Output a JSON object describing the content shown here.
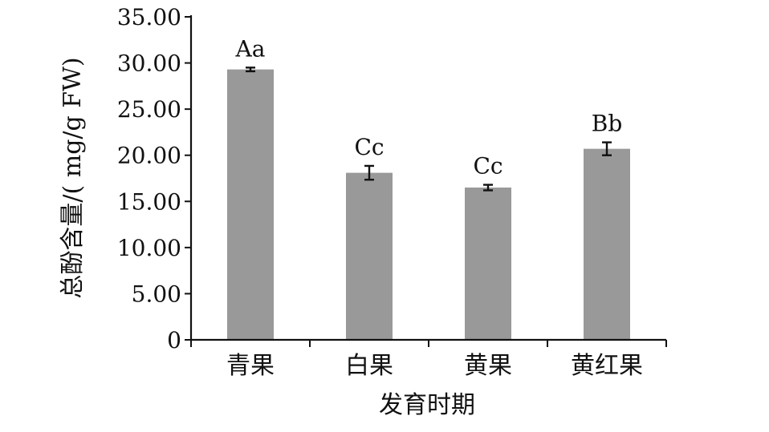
{
  "chart_data": {
    "type": "bar",
    "title": "",
    "xlabel": "发育时期",
    "ylabel": "总酚含量/( mg/g FW)",
    "categories": [
      "青果",
      "白果",
      "黄果",
      "黄红果"
    ],
    "series": [
      {
        "values": [
          29.3,
          18.1,
          16.5,
          20.7
        ],
        "error": [
          0.2,
          0.75,
          0.3,
          0.7
        ],
        "significance": [
          "Aa",
          "Cc",
          "Cc",
          "Bb"
        ]
      }
    ],
    "ylim": [
      0,
      35
    ],
    "yticks": [
      "0",
      "5.00",
      "10.00",
      "15.00",
      "20.00",
      "25.00",
      "30.00",
      "35.00"
    ],
    "grid": false,
    "legend": "none",
    "bar_color": "#999999",
    "axis_color": "#111111"
  }
}
